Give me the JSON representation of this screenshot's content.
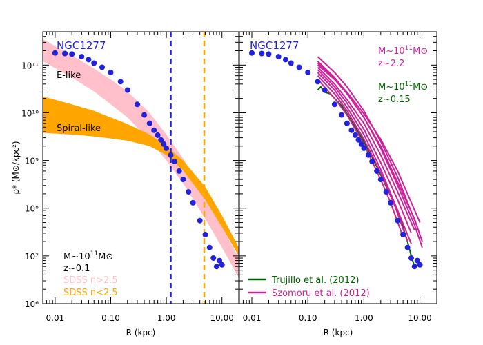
{
  "chart_data": [
    {
      "type": "scatter",
      "panel": "left",
      "title": "NGC1277",
      "xlabel": "R (kpc)",
      "ylabel": "ρ* (M⊙/kpc²)",
      "xscale": "log",
      "yscale": "log",
      "xlim": [
        0.006,
        20
      ],
      "ylim": [
        1000000,
        500000000000
      ],
      "x_ticks": [
        0.01,
        0.1,
        1.0,
        10.0
      ],
      "x_tick_labels": [
        "0.01",
        "0.10",
        "1.00",
        "10.00"
      ],
      "y_ticks": [
        1000000,
        10000000,
        100000000,
        1000000000,
        10000000000,
        100000000000
      ],
      "y_tick_labels": [
        "10⁶",
        "10⁷",
        "10⁸",
        "10⁹",
        "10¹⁰",
        "10¹¹"
      ],
      "vlines": [
        {
          "x": 1.2,
          "color": "#2222dd",
          "style": "dashed"
        },
        {
          "x": 4.8,
          "color": "#ffa500",
          "style": "dashed"
        }
      ],
      "bands": [
        {
          "name": "E-like",
          "color": "#ffc0cb",
          "x": [
            0.006,
            0.02,
            0.05,
            0.1,
            0.2,
            0.5,
            1.0,
            2.0,
            5.0,
            10.0,
            20.0
          ],
          "upper": [
            350000000000,
            160000000000,
            85000000000,
            50000000000,
            28000000000,
            10000000000,
            3500000000,
            1100000000,
            180000000,
            40000000,
            9000000
          ],
          "lower": [
            120000000000,
            55000000000,
            28000000000,
            15000000000,
            8000000000,
            2700000000,
            1000000000,
            330000000,
            60000000,
            15000000,
            3500000
          ]
        },
        {
          "name": "Spiral-like",
          "color": "#ffa500",
          "x": [
            0.006,
            0.02,
            0.05,
            0.1,
            0.2,
            0.5,
            1.0,
            2.0,
            5.0,
            10.0,
            20.0
          ],
          "upper": [
            22000000000,
            15000000000,
            11000000000,
            8000000000,
            5800000000,
            3500000000,
            2000000000,
            1000000000,
            280000000,
            70000000,
            15000000
          ],
          "lower": [
            3800000000,
            3500000000,
            3200000000,
            2900000000,
            2600000000,
            2000000000,
            1300000000,
            620000000,
            150000000,
            40000000,
            10000000
          ]
        }
      ],
      "series": [
        {
          "name": "NGC1277",
          "color": "#2222dd",
          "x": [
            0.01,
            0.015,
            0.02,
            0.03,
            0.04,
            0.05,
            0.07,
            0.1,
            0.15,
            0.2,
            0.3,
            0.4,
            0.5,
            0.6,
            0.7,
            0.8,
            0.9,
            1.0,
            1.2,
            1.4,
            1.7,
            2.0,
            2.5,
            3.0,
            4.0,
            5.0,
            6.0,
            7.0,
            8.0,
            9.0,
            10.0
          ],
          "y": [
            180000000000,
            175000000000,
            170000000000,
            150000000000,
            130000000000,
            110000000000,
            90000000000,
            70000000000,
            45000000000,
            30000000000,
            15000000000,
            9000000000,
            6000000000,
            4300000000,
            3400000000,
            2700000000,
            2200000000,
            1800000000,
            1300000000,
            950000000,
            600000000,
            400000000,
            220000000,
            130000000,
            55000000,
            28000000,
            15000000,
            9000000,
            6000000,
            8000000,
            6500000
          ]
        }
      ],
      "annotations": {
        "elike": "E-like",
        "spiral": "Spiral-like",
        "mass_prefix": "M~10",
        "mass_exp": "11",
        "mass_suffix": "M⊙",
        "z": "z~0.1",
        "sdss_e": "SDSS n>2.5",
        "sdss_s": "SDSS n<2.5"
      }
    },
    {
      "type": "line",
      "panel": "right",
      "title": "NGC1277",
      "xlabel": "R (kpc)",
      "xscale": "log",
      "yscale": "log",
      "xlim": [
        0.006,
        20
      ],
      "ylim": [
        1000000,
        500000000000
      ],
      "x_ticks": [
        0.01,
        0.1,
        1.0,
        10.0
      ],
      "x_tick_labels": [
        "0.01",
        "0.10",
        "1.00",
        "10.00"
      ],
      "series": [
        {
          "name": "NGC1277",
          "color": "#2222dd",
          "kind": "points",
          "x": [
            0.01,
            0.015,
            0.02,
            0.03,
            0.04,
            0.05,
            0.07,
            0.1,
            0.15,
            0.2,
            0.3,
            0.4,
            0.5,
            0.6,
            0.7,
            0.8,
            0.9,
            1.0,
            1.2,
            1.4,
            1.7,
            2.0,
            2.5,
            3.0,
            4.0,
            5.0,
            6.0,
            7.0,
            8.0,
            9.0,
            10.0
          ],
          "y": [
            180000000000,
            175000000000,
            170000000000,
            150000000000,
            130000000000,
            110000000000,
            90000000000,
            70000000000,
            45000000000,
            30000000000,
            15000000000,
            9000000000,
            6000000000,
            4300000000,
            3400000000,
            2700000000,
            2200000000,
            1800000000,
            1300000000,
            950000000,
            600000000,
            400000000,
            220000000,
            130000000,
            55000000,
            28000000,
            15000000,
            9000000,
            6000000,
            8000000,
            6500000
          ]
        },
        {
          "name": "Trujillo et al. (2012)",
          "color": "#006400",
          "kind": "line",
          "x": [
            0.15,
            0.17,
            0.2,
            0.25,
            0.3,
            0.4,
            0.5,
            0.7,
            1.0,
            1.5,
            2.0,
            3.0,
            4.0,
            5.0,
            6.0,
            7.0,
            8.0
          ],
          "y": [
            30000000000,
            35000000000,
            27000000000,
            25000000000,
            20000000000,
            14000000000,
            9500000000,
            5000000000,
            2500000000,
            1000000000,
            500000000,
            180000000,
            80000000,
            40000000,
            20000000,
            10000000,
            6000000
          ]
        },
        {
          "name": "Szomoru et al. (2012) #1",
          "color": "#cc2299",
          "kind": "line",
          "x": [
            0.15,
            0.3,
            0.5,
            1.0,
            2.0,
            4.0,
            8.0,
            11.0
          ],
          "y": [
            100000000000,
            50000000000,
            25000000000,
            8000000000,
            2000000000,
            350000000,
            60000000,
            20000000
          ]
        },
        {
          "name": "Szomoru et al. (2012) #2",
          "color": "#cc2299",
          "kind": "line",
          "x": [
            0.15,
            0.3,
            0.5,
            1.0,
            2.0,
            4.0,
            8.0,
            11.0
          ],
          "y": [
            120000000000,
            55000000000,
            26000000000,
            8000000000,
            1800000000,
            300000000,
            45000000,
            15000000
          ]
        },
        {
          "name": "Szomoru et al. (2012) #3",
          "color": "#cc2299",
          "kind": "line",
          "x": [
            0.15,
            0.3,
            0.5,
            1.0,
            2.0,
            4.0,
            7.0
          ],
          "y": [
            80000000000,
            35000000000,
            16000000000,
            4500000000,
            900000000,
            150000000,
            30000000
          ]
        },
        {
          "name": "Szomoru et al. (2012) #4",
          "color": "#cc2299",
          "kind": "line",
          "x": [
            0.15,
            0.3,
            0.5,
            1.0,
            2.0,
            3.5,
            6.0
          ],
          "y": [
            60000000000,
            25000000000,
            11000000000,
            2800000000,
            550000000,
            120000000,
            20000000
          ]
        },
        {
          "name": "Szomoru et al. (2012) #5",
          "color": "#cc2299",
          "kind": "line",
          "x": [
            0.15,
            0.3,
            0.5,
            1.0,
            2.0,
            4.0,
            9.0
          ],
          "y": [
            150000000000,
            70000000000,
            35000000000,
            11000000000,
            2500000000,
            450000000,
            40000000
          ]
        },
        {
          "name": "Szomoru et al. (2012) #6",
          "color": "#cc2299",
          "kind": "line",
          "x": [
            0.15,
            0.3,
            0.5,
            1.0,
            2.0,
            4.0,
            8.0
          ],
          "y": [
            90000000000,
            40000000000,
            19000000000,
            6000000000,
            1300000000,
            220000000,
            35000000
          ]
        },
        {
          "name": "Szomoru et al. (2012) #7",
          "color": "#cc2299",
          "kind": "line",
          "x": [
            0.15,
            0.3,
            0.5,
            1.0,
            2.0,
            3.0,
            5.0
          ],
          "y": [
            50000000000,
            20000000000,
            9000000000,
            2200000000,
            400000000,
            130000000,
            25000000
          ]
        },
        {
          "name": "Szomoru et al. (2012) #8",
          "color": "#cc2299",
          "kind": "line",
          "x": [
            0.15,
            0.3,
            0.5,
            1.0,
            2.0,
            4.0,
            10.0
          ],
          "y": [
            110000000000,
            52000000000,
            27000000000,
            9500000000,
            2800000000,
            600000000,
            50000000
          ]
        },
        {
          "name": "Szomoru et al. (2012) #9",
          "color": "#cc2299",
          "kind": "line",
          "x": [
            0.15,
            0.3,
            0.5,
            1.0,
            2.0,
            4.0,
            7.0
          ],
          "y": [
            70000000000,
            30000000000,
            13000000000,
            3500000000,
            650000000,
            90000000,
            18000000
          ]
        }
      ],
      "annotations": {
        "mass_prefix": "M~10",
        "mass_exp": "11",
        "mass_suffix": "M⊙",
        "z_high": "z~2.2",
        "z_low": "z~0.15",
        "legend_trujillo": "Trujillo et al. (2012)",
        "legend_szomoru": "Szomoru et al. (2012)"
      }
    }
  ],
  "colors": {
    "ngc": "#2222dd",
    "elike": "#ffc0cb",
    "spiral": "#ffa500",
    "trujillo": "#006400",
    "szomoru": "#cc2299"
  }
}
